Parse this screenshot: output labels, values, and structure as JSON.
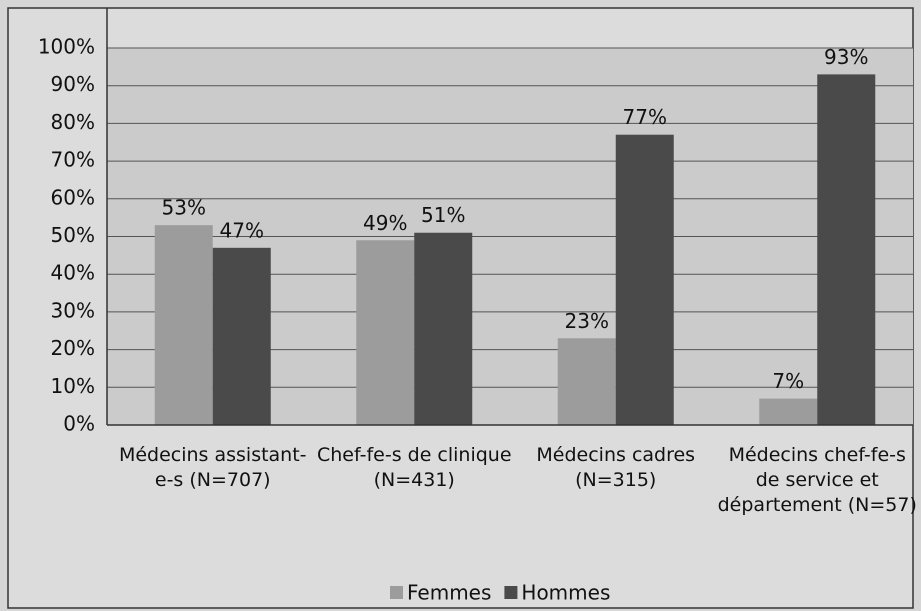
{
  "chart_data": {
    "type": "bar",
    "categories": [
      "Médecins assistant-e-s (N=707)",
      "Chef-fe-s de clinique (N=431)",
      "Médecins cadres (N=315)",
      "Médecins chef-fe-s de service et département (N=57)"
    ],
    "series": [
      {
        "name": "Femmes",
        "color": "#9c9c9c",
        "values": [
          53,
          49,
          23,
          7
        ],
        "value_labels": [
          "53%",
          "49%",
          "23%",
          "7%"
        ]
      },
      {
        "name": "Hommes",
        "color": "#4a4a4a",
        "values": [
          47,
          51,
          77,
          93
        ],
        "value_labels": [
          "47%",
          "51%",
          "77%",
          "93%"
        ]
      }
    ],
    "ylim": [
      0,
      100
    ],
    "yticks": [
      {
        "value": 0,
        "label": "0%"
      },
      {
        "value": 10,
        "label": "10%"
      },
      {
        "value": 20,
        "label": "20%"
      },
      {
        "value": 30,
        "label": "30%"
      },
      {
        "value": 40,
        "label": "40%"
      },
      {
        "value": 50,
        "label": "50%"
      },
      {
        "value": 60,
        "label": "60%"
      },
      {
        "value": 70,
        "label": "70%"
      },
      {
        "value": 80,
        "label": "80%"
      },
      {
        "value": 90,
        "label": "90%"
      },
      {
        "value": 100,
        "label": "100%"
      }
    ],
    "grid": true,
    "legend": "bottom"
  }
}
